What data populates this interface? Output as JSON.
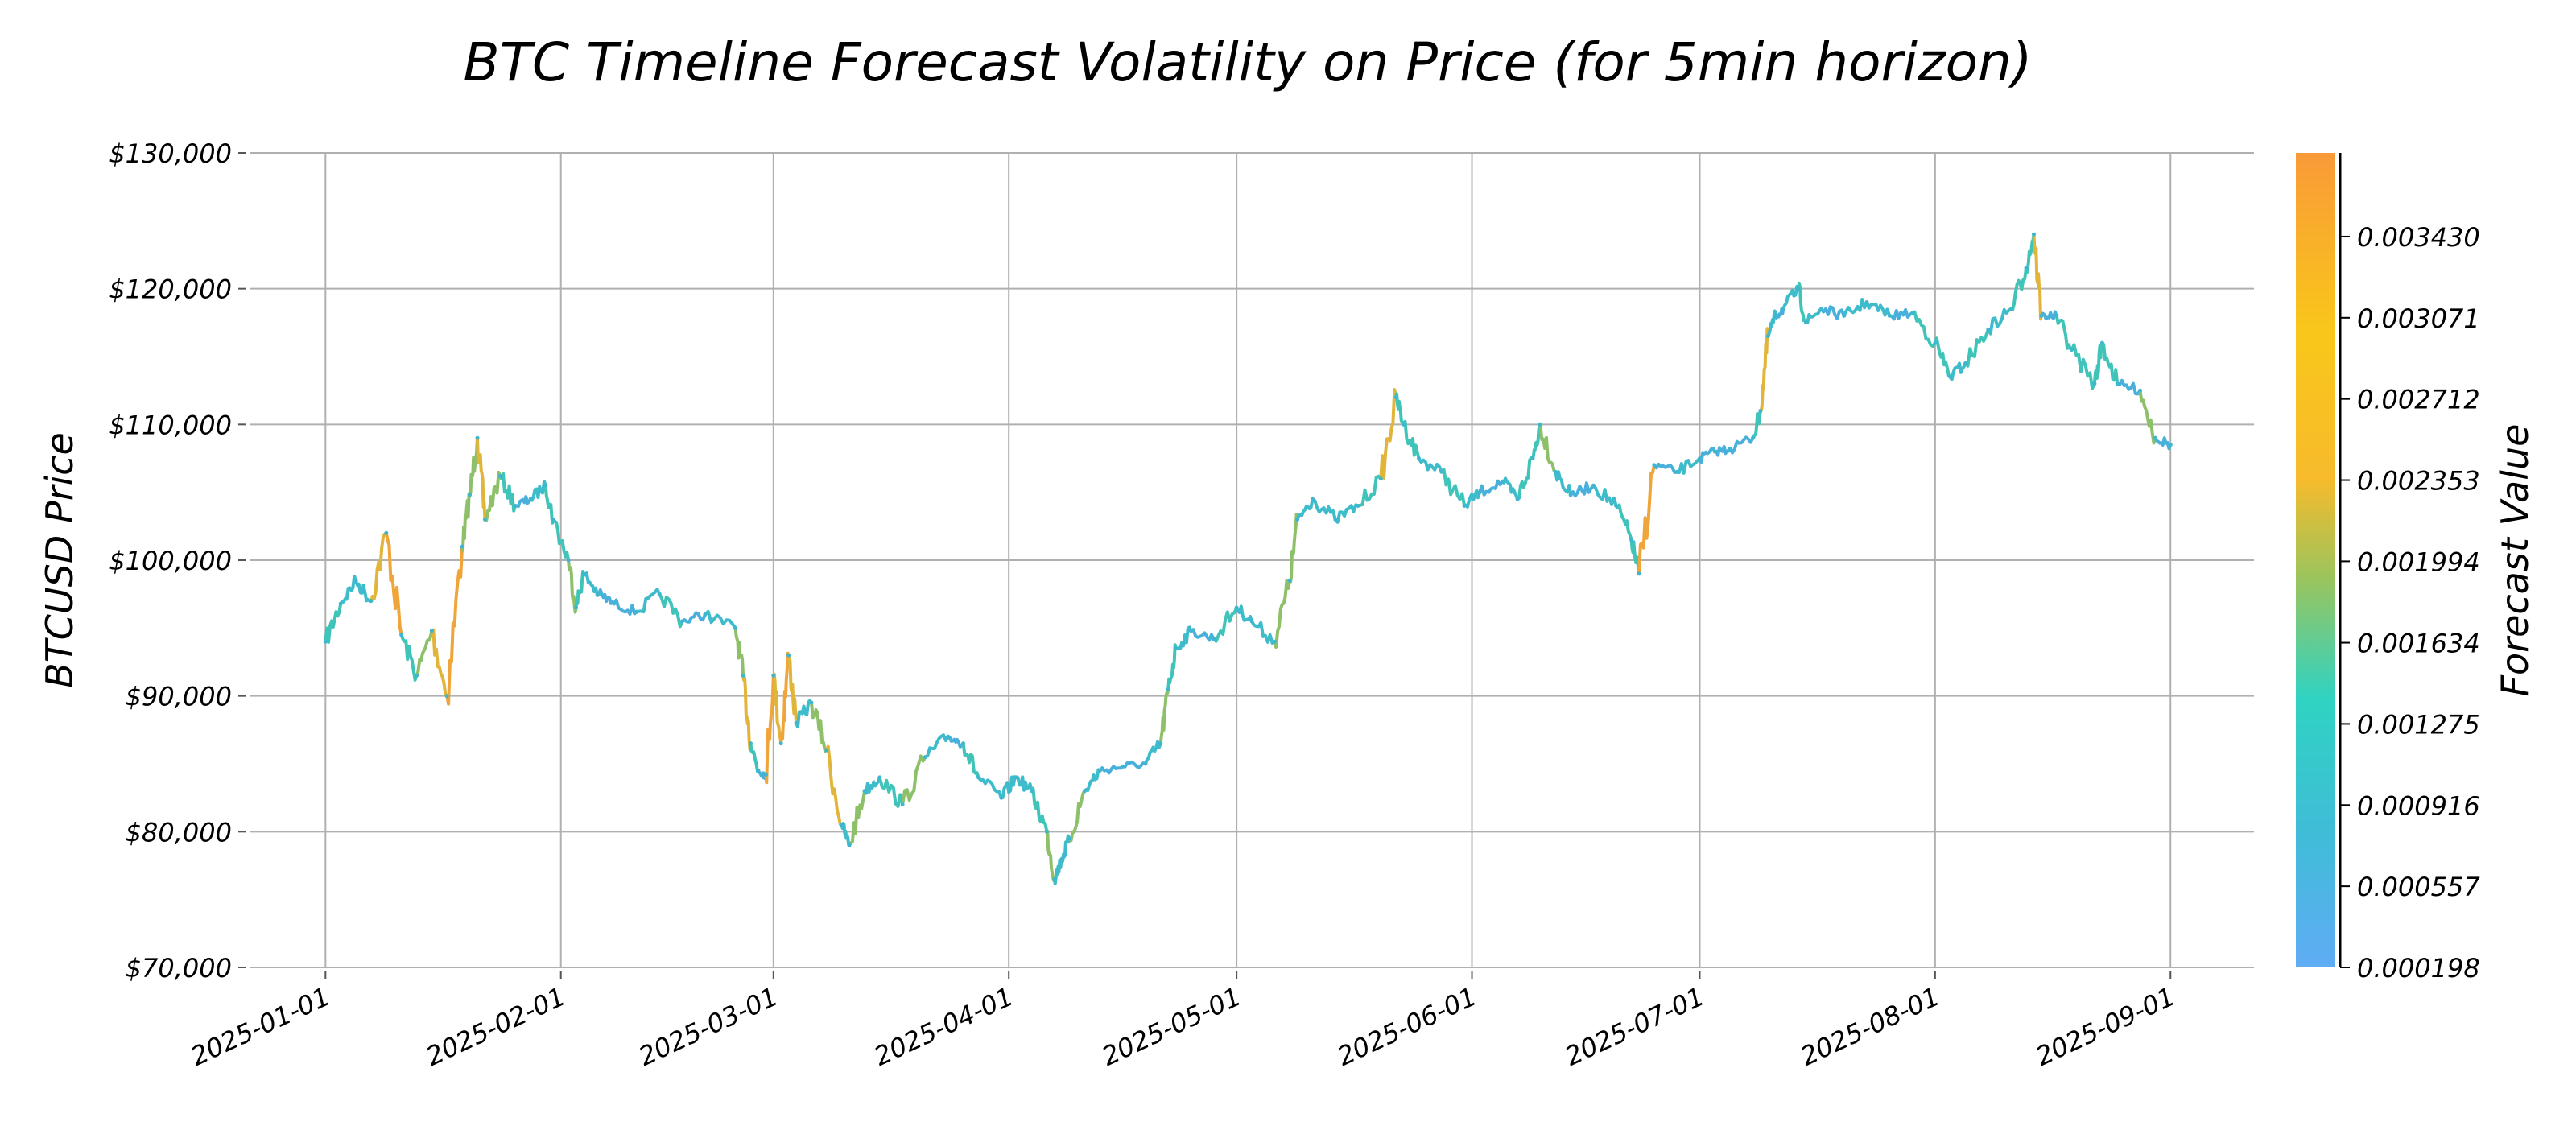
{
  "chart_data": {
    "type": "line",
    "title": "BTC Timeline Forecast Volatility on Price (for 5min horizon)",
    "ylabel": "BTCUSD Price",
    "xlabel": "",
    "ylim": [
      70000,
      130000
    ],
    "xlim": [
      "2024-12-22",
      "2025-09-12"
    ],
    "grid": true,
    "y_ticks": [
      70000,
      80000,
      90000,
      100000,
      110000,
      120000,
      130000
    ],
    "y_tick_labels": [
      "$70,000",
      "$80,000",
      "$90,000",
      "$100,000",
      "$110,000",
      "$120,000",
      "$130,000"
    ],
    "x_ticks": [
      "2025-01-01",
      "2025-02-01",
      "2025-03-01",
      "2025-04-01",
      "2025-05-01",
      "2025-06-01",
      "2025-07-01",
      "2025-08-01",
      "2025-09-01"
    ],
    "colorbar": {
      "label": "Forecast Value",
      "min": 0.000198,
      "max": 0.0038,
      "ticks": [
        0.000198,
        0.000557,
        0.000916,
        0.001275,
        0.001634,
        0.001994,
        0.002353,
        0.002712,
        0.003071,
        0.00343
      ],
      "tick_labels": [
        "0.000198",
        "0.000557",
        "0.000916",
        "0.001275",
        "0.001634",
        "0.001994",
        "0.002353",
        "0.002712",
        "0.003071",
        "0.003430"
      ],
      "colors": [
        "#60acf5",
        "#40bcd8",
        "#2fd3c2",
        "#9dc45c",
        "#f7bb2c",
        "#f9c71a",
        "#f99a38"
      ]
    },
    "series": [
      {
        "x": [
          "2025-01-01",
          "2025-01-03",
          "2025-01-05",
          "2025-01-07",
          "2025-01-09",
          "2025-01-11",
          "2025-01-13",
          "2025-01-15",
          "2025-01-17",
          "2025-01-19",
          "2025-01-20",
          "2025-01-21",
          "2025-01-22",
          "2025-01-24",
          "2025-01-26",
          "2025-01-28",
          "2025-01-30",
          "2025-01-31",
          "2025-02-02",
          "2025-02-03",
          "2025-02-04",
          "2025-02-06",
          "2025-02-08",
          "2025-02-11",
          "2025-02-14",
          "2025-02-17",
          "2025-02-20",
          "2025-02-24",
          "2025-02-25",
          "2025-02-26",
          "2025-02-27",
          "2025-02-28",
          "2025-03-01",
          "2025-03-02",
          "2025-03-03",
          "2025-03-04",
          "2025-03-06",
          "2025-03-08",
          "2025-03-10",
          "2025-03-11",
          "2025-03-13",
          "2025-03-15",
          "2025-03-18",
          "2025-03-21",
          "2025-03-24",
          "2025-03-26",
          "2025-03-28",
          "2025-03-31",
          "2025-04-02",
          "2025-04-04",
          "2025-04-06",
          "2025-04-07",
          "2025-04-08",
          "2025-04-09",
          "2025-04-11",
          "2025-04-13",
          "2025-04-16",
          "2025-04-19",
          "2025-04-21",
          "2025-04-22",
          "2025-04-23",
          "2025-04-25",
          "2025-04-28",
          "2025-05-01",
          "2025-05-03",
          "2025-05-06",
          "2025-05-08",
          "2025-05-09",
          "2025-05-11",
          "2025-05-14",
          "2025-05-17",
          "2025-05-20",
          "2025-05-22",
          "2025-05-23",
          "2025-05-25",
          "2025-05-28",
          "2025-05-31",
          "2025-06-02",
          "2025-06-05",
          "2025-06-07",
          "2025-06-09",
          "2025-06-10",
          "2025-06-12",
          "2025-06-14",
          "2025-06-17",
          "2025-06-20",
          "2025-06-22",
          "2025-06-23",
          "2025-06-25",
          "2025-06-28",
          "2025-07-01",
          "2025-07-03",
          "2025-07-05",
          "2025-07-08",
          "2025-07-09",
          "2025-07-10",
          "2025-07-11",
          "2025-07-12",
          "2025-07-14",
          "2025-07-15",
          "2025-07-17",
          "2025-07-20",
          "2025-07-23",
          "2025-07-26",
          "2025-07-29",
          "2025-08-01",
          "2025-08-03",
          "2025-08-05",
          "2025-08-08",
          "2025-08-11",
          "2025-08-13",
          "2025-08-14",
          "2025-08-15",
          "2025-08-17",
          "2025-08-19",
          "2025-08-22",
          "2025-08-23",
          "2025-08-25",
          "2025-08-28",
          "2025-08-30",
          "2025-09-01"
        ],
        "y": [
          94000,
          96800,
          98500,
          97000,
          102000,
          94500,
          91500,
          94800,
          90000,
          101000,
          104800,
          109000,
          103000,
          106200,
          104000,
          104500,
          105500,
          103000,
          100000,
          96500,
          99000,
          97500,
          96800,
          96200,
          97500,
          95500,
          96000,
          95000,
          91500,
          86500,
          84500,
          84200,
          91500,
          86500,
          93000,
          88000,
          89500,
          86000,
          80500,
          79000,
          83000,
          84000,
          82000,
          85500,
          87000,
          86500,
          84000,
          82500,
          84000,
          83000,
          80000,
          76500,
          78000,
          79500,
          83000,
          84500,
          84800,
          85000,
          86500,
          90500,
          93500,
          94800,
          94200,
          96500,
          95500,
          94000,
          98500,
          103000,
          104500,
          103000,
          104000,
          106000,
          112000,
          110000,
          107500,
          106500,
          104000,
          105000,
          105800,
          104500,
          107500,
          110000,
          106500,
          104800,
          105500,
          104000,
          101500,
          99000,
          107000,
          106500,
          107500,
          108000,
          108200,
          109000,
          111000,
          116500,
          118000,
          118500,
          120000,
          117500,
          118500,
          118000,
          119000,
          118000,
          118200,
          116000,
          113500,
          114500,
          117000,
          118500,
          121500,
          124000,
          118000,
          118000,
          115500,
          113000,
          116000,
          113000,
          112500,
          109000,
          108500
        ]
      }
    ]
  }
}
